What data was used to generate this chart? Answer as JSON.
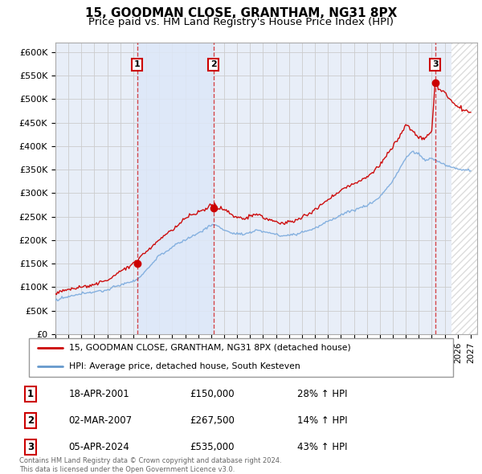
{
  "title": "15, GOODMAN CLOSE, GRANTHAM, NG31 8PX",
  "subtitle": "Price paid vs. HM Land Registry's House Price Index (HPI)",
  "ylabel_ticks": [
    "£0",
    "£50K",
    "£100K",
    "£150K",
    "£200K",
    "£250K",
    "£300K",
    "£350K",
    "£400K",
    "£450K",
    "£500K",
    "£550K",
    "£600K"
  ],
  "ytick_vals": [
    0,
    50000,
    100000,
    150000,
    200000,
    250000,
    300000,
    350000,
    400000,
    450000,
    500000,
    550000,
    600000
  ],
  "ylim": [
    0,
    620000
  ],
  "xlim_start": 1995.0,
  "xlim_end": 2027.5,
  "purchases": [
    {
      "date_year": 2001.3,
      "price": 150000,
      "label": "1",
      "pct": "28%",
      "date_str": "18-APR-2001",
      "price_str": "£150,000"
    },
    {
      "date_year": 2007.17,
      "price": 267500,
      "label": "2",
      "pct": "14%",
      "date_str": "02-MAR-2007",
      "price_str": "£267,500"
    },
    {
      "date_year": 2024.27,
      "price": 535000,
      "label": "3",
      "pct": "43%",
      "date_str": "05-APR-2024",
      "price_str": "£535,000"
    }
  ],
  "legend_entries": [
    {
      "label": "15, GOODMAN CLOSE, GRANTHAM, NG31 8PX (detached house)",
      "color": "#cc0000"
    },
    {
      "label": "HPI: Average price, detached house, South Kesteven",
      "color": "#6699cc"
    }
  ],
  "footer_lines": [
    "Contains HM Land Registry data © Crown copyright and database right 2024.",
    "This data is licensed under the Open Government Licence v3.0."
  ],
  "bg_color": "#e8eef8",
  "grid_color": "#cccccc",
  "sale_line_color": "#cc0000",
  "hpi_line_color": "#7aaadd",
  "title_fontsize": 11,
  "subtitle_fontsize": 9.5,
  "shade_between_1_2": true,
  "hatch_start": 2025.5
}
